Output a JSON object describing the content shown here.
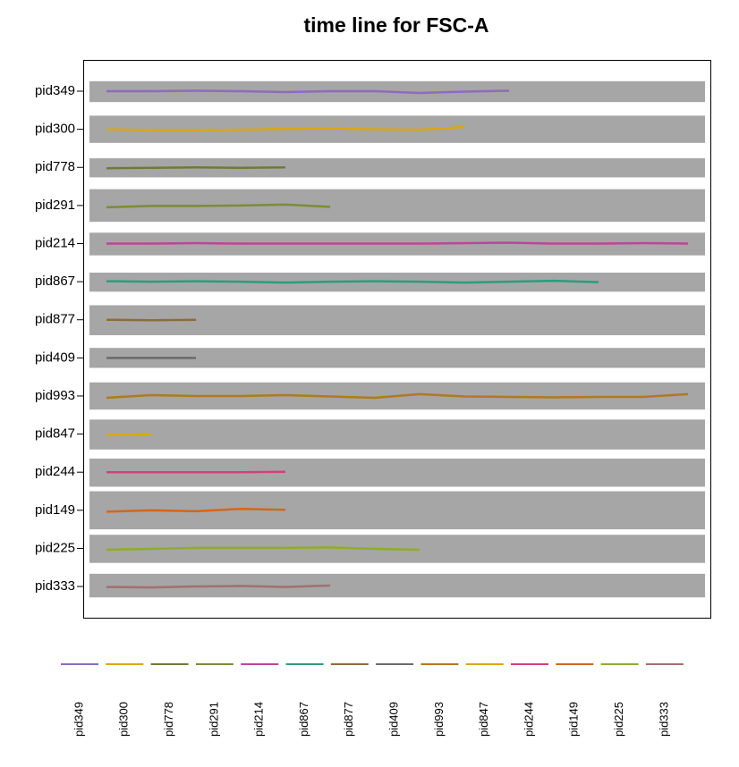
{
  "chart_data": {
    "type": "timeline",
    "title": "time line for FSC-A",
    "ylim": [
      -21,
      21
    ],
    "series": [
      {
        "name": "pid349",
        "color": "#8e6bbf",
        "band": [
          -12,
          11
        ],
        "values": [
          0,
          0,
          0.5,
          0,
          -1,
          0,
          0,
          -2,
          -0.5,
          0.5
        ]
      },
      {
        "name": "pid300",
        "color": "#d9a80f",
        "band": [
          -15,
          15
        ],
        "values": [
          0,
          -1,
          -1,
          -0.5,
          0.5,
          1,
          0,
          -0.5,
          2.5
        ]
      },
      {
        "name": "pid778",
        "color": "#6e7a35",
        "band": [
          -11,
          10
        ],
        "values": [
          -1,
          -0.5,
          0,
          -0.5,
          0
        ]
      },
      {
        "name": "pid291",
        "color": "#7a8c3c",
        "band": [
          -18,
          18
        ],
        "values": [
          -2,
          -0.5,
          -0.5,
          0,
          1,
          -1.5
        ]
      },
      {
        "name": "pid214",
        "color": "#c0449a",
        "band": [
          -13,
          12
        ],
        "values": [
          0,
          0,
          0.5,
          0,
          0,
          0,
          0,
          0,
          0.5,
          1,
          0,
          0,
          0.5,
          0
        ]
      },
      {
        "name": "pid867",
        "color": "#2a9d7c",
        "band": [
          -11,
          10
        ],
        "values": [
          0.5,
          0,
          0.5,
          0,
          -1,
          0,
          0.5,
          0,
          -1,
          0,
          1,
          -0.5
        ]
      },
      {
        "name": "pid877",
        "color": "#8c6d3a",
        "band": [
          -17,
          16
        ],
        "values": [
          0,
          -0.5,
          0
        ]
      },
      {
        "name": "pid409",
        "color": "#6a6a6a",
        "band": [
          -11,
          11
        ],
        "values": [
          0,
          0,
          0
        ]
      },
      {
        "name": "pid993",
        "color": "#b07a1e",
        "band": [
          -15,
          15
        ],
        "values": [
          -2,
          1,
          0,
          0,
          1,
          -0.5,
          -2,
          2,
          -0.5,
          -1,
          -1.5,
          -1,
          -1,
          2
        ]
      },
      {
        "name": "pid847",
        "color": "#d9a80f",
        "band": [
          -17,
          16
        ],
        "values": [
          -1,
          0
        ]
      },
      {
        "name": "pid244",
        "color": "#d6407a",
        "band": [
          -16,
          15
        ],
        "values": [
          0,
          0,
          0,
          0,
          0.5
        ]
      },
      {
        "name": "pid149",
        "color": "#d4661a",
        "band": [
          -21,
          21
        ],
        "values": [
          -1.5,
          0,
          -1,
          1.5,
          0.5
        ]
      },
      {
        "name": "pid225",
        "color": "#8fad2a",
        "band": [
          -16,
          15
        ],
        "values": [
          -1.5,
          -0.5,
          0.5,
          0.5,
          0.5,
          1,
          -0.5,
          -1.5
        ]
      },
      {
        "name": "pid333",
        "color": "#a07070",
        "band": [
          -12,
          14
        ],
        "values": [
          -0.5,
          -1,
          0,
          0.5,
          -0.5,
          1
        ]
      }
    ]
  }
}
